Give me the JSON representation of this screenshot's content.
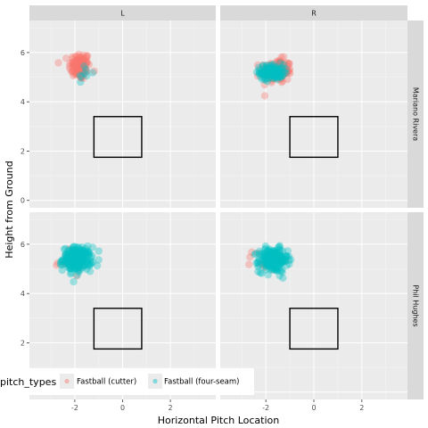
{
  "chart_data": {
    "type": "scatter",
    "xlabel": "Horizontal Pitch Location",
    "ylabel": "Height from Ground",
    "xlim": [
      -3.9,
      3.9
    ],
    "ylim": [
      -0.3,
      7.3
    ],
    "x_ticks": [
      -2,
      0,
      2
    ],
    "x_tick_labels": [
      "-2",
      "0",
      "2"
    ],
    "y_ticks": [
      0,
      2,
      4,
      6
    ],
    "y_tick_labels": [
      "0",
      "2",
      "4",
      "6"
    ],
    "grid": true,
    "facets": {
      "columns": [
        "L",
        "R"
      ],
      "rows": [
        "Mariano Rivera",
        "Phil Hughes"
      ]
    },
    "strike_zone": {
      "x": [
        -1.2,
        0.8
      ],
      "y": [
        1.75,
        3.4
      ],
      "x_right_panel": [
        -1.0,
        1.0
      ]
    },
    "legend": {
      "title": "pitch_types",
      "position": "bottom-left",
      "entries": [
        {
          "label": "Fastball (cutter)",
          "color": "#F8766D"
        },
        {
          "label": "Fastball (four-seam)",
          "color": "#00BFC4"
        }
      ]
    },
    "panels": [
      {
        "row": "Mariano Rivera",
        "col": "L",
        "series": [
          {
            "name": "Fastball (cutter)",
            "color": "#F8766D",
            "center": [
              -1.8,
              5.45
            ],
            "spread": [
              0.22,
              0.28
            ],
            "n": 110
          },
          {
            "name": "Fastball (four-seam)",
            "color": "#00BFC4",
            "center": [
              -1.6,
              5.15
            ],
            "spread": [
              0.15,
              0.2
            ],
            "n": 8
          }
        ]
      },
      {
        "row": "Mariano Rivera",
        "col": "R",
        "series": [
          {
            "name": "Fastball (cutter)",
            "color": "#F8766D",
            "center": [
              -1.55,
              5.25
            ],
            "spread": [
              0.32,
              0.24
            ],
            "n": 130
          },
          {
            "name": "Fastball (four-seam)",
            "color": "#00BFC4",
            "center": [
              -1.75,
              5.2
            ],
            "spread": [
              0.25,
              0.16
            ],
            "n": 120
          }
        ]
      },
      {
        "row": "Phil Hughes",
        "col": "L",
        "series": [
          {
            "name": "Fastball (cutter)",
            "color": "#F8766D",
            "center": [
              -2.2,
              5.3
            ],
            "spread": [
              0.3,
              0.2
            ],
            "n": 25
          },
          {
            "name": "Fastball (four-seam)",
            "color": "#00BFC4",
            "center": [
              -1.9,
              5.4
            ],
            "spread": [
              0.3,
              0.24
            ],
            "n": 240
          }
        ]
      },
      {
        "row": "Phil Hughes",
        "col": "R",
        "series": [
          {
            "name": "Fastball (cutter)",
            "color": "#F8766D",
            "center": [
              -2.0,
              5.35
            ],
            "spread": [
              0.28,
              0.2
            ],
            "n": 20
          },
          {
            "name": "Fastball (four-seam)",
            "color": "#00BFC4",
            "center": [
              -1.7,
              5.35
            ],
            "spread": [
              0.3,
              0.24
            ],
            "n": 230
          }
        ]
      }
    ]
  }
}
